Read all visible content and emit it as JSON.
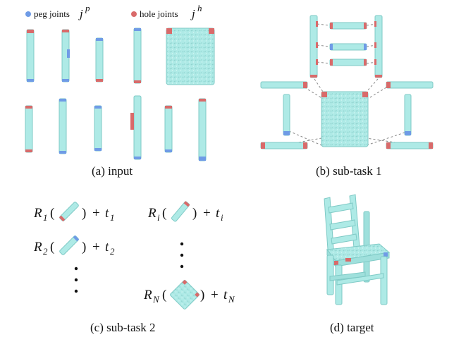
{
  "legend": {
    "peg_label": "peg joints",
    "peg_symbol": "j",
    "peg_sup": "p",
    "hole_label": "hole joints",
    "hole_symbol": "j",
    "hole_sup": "h",
    "peg_color": "#6f9be6",
    "hole_color": "#d96a6a"
  },
  "part_color": "#aeeae6",
  "part_stroke": "#7fcac6",
  "captions": {
    "a": "(a) input",
    "b": "(b) sub-task 1",
    "c": "(c) sub-task 2",
    "d": "(d) target"
  },
  "formulas": {
    "r1": {
      "R": "R",
      "r_sub": "1",
      "plus": "+",
      "t": "t",
      "t_sub": "1"
    },
    "r2": {
      "R": "R",
      "r_sub": "2",
      "plus": "+",
      "t": "t",
      "t_sub": "2"
    },
    "ri": {
      "R": "R",
      "r_sub": "i",
      "plus": "+",
      "t": "t",
      "t_sub": "i"
    },
    "rn": {
      "R": "R",
      "r_sub": "N",
      "plus": "+",
      "t": "t",
      "t_sub": "N"
    }
  }
}
